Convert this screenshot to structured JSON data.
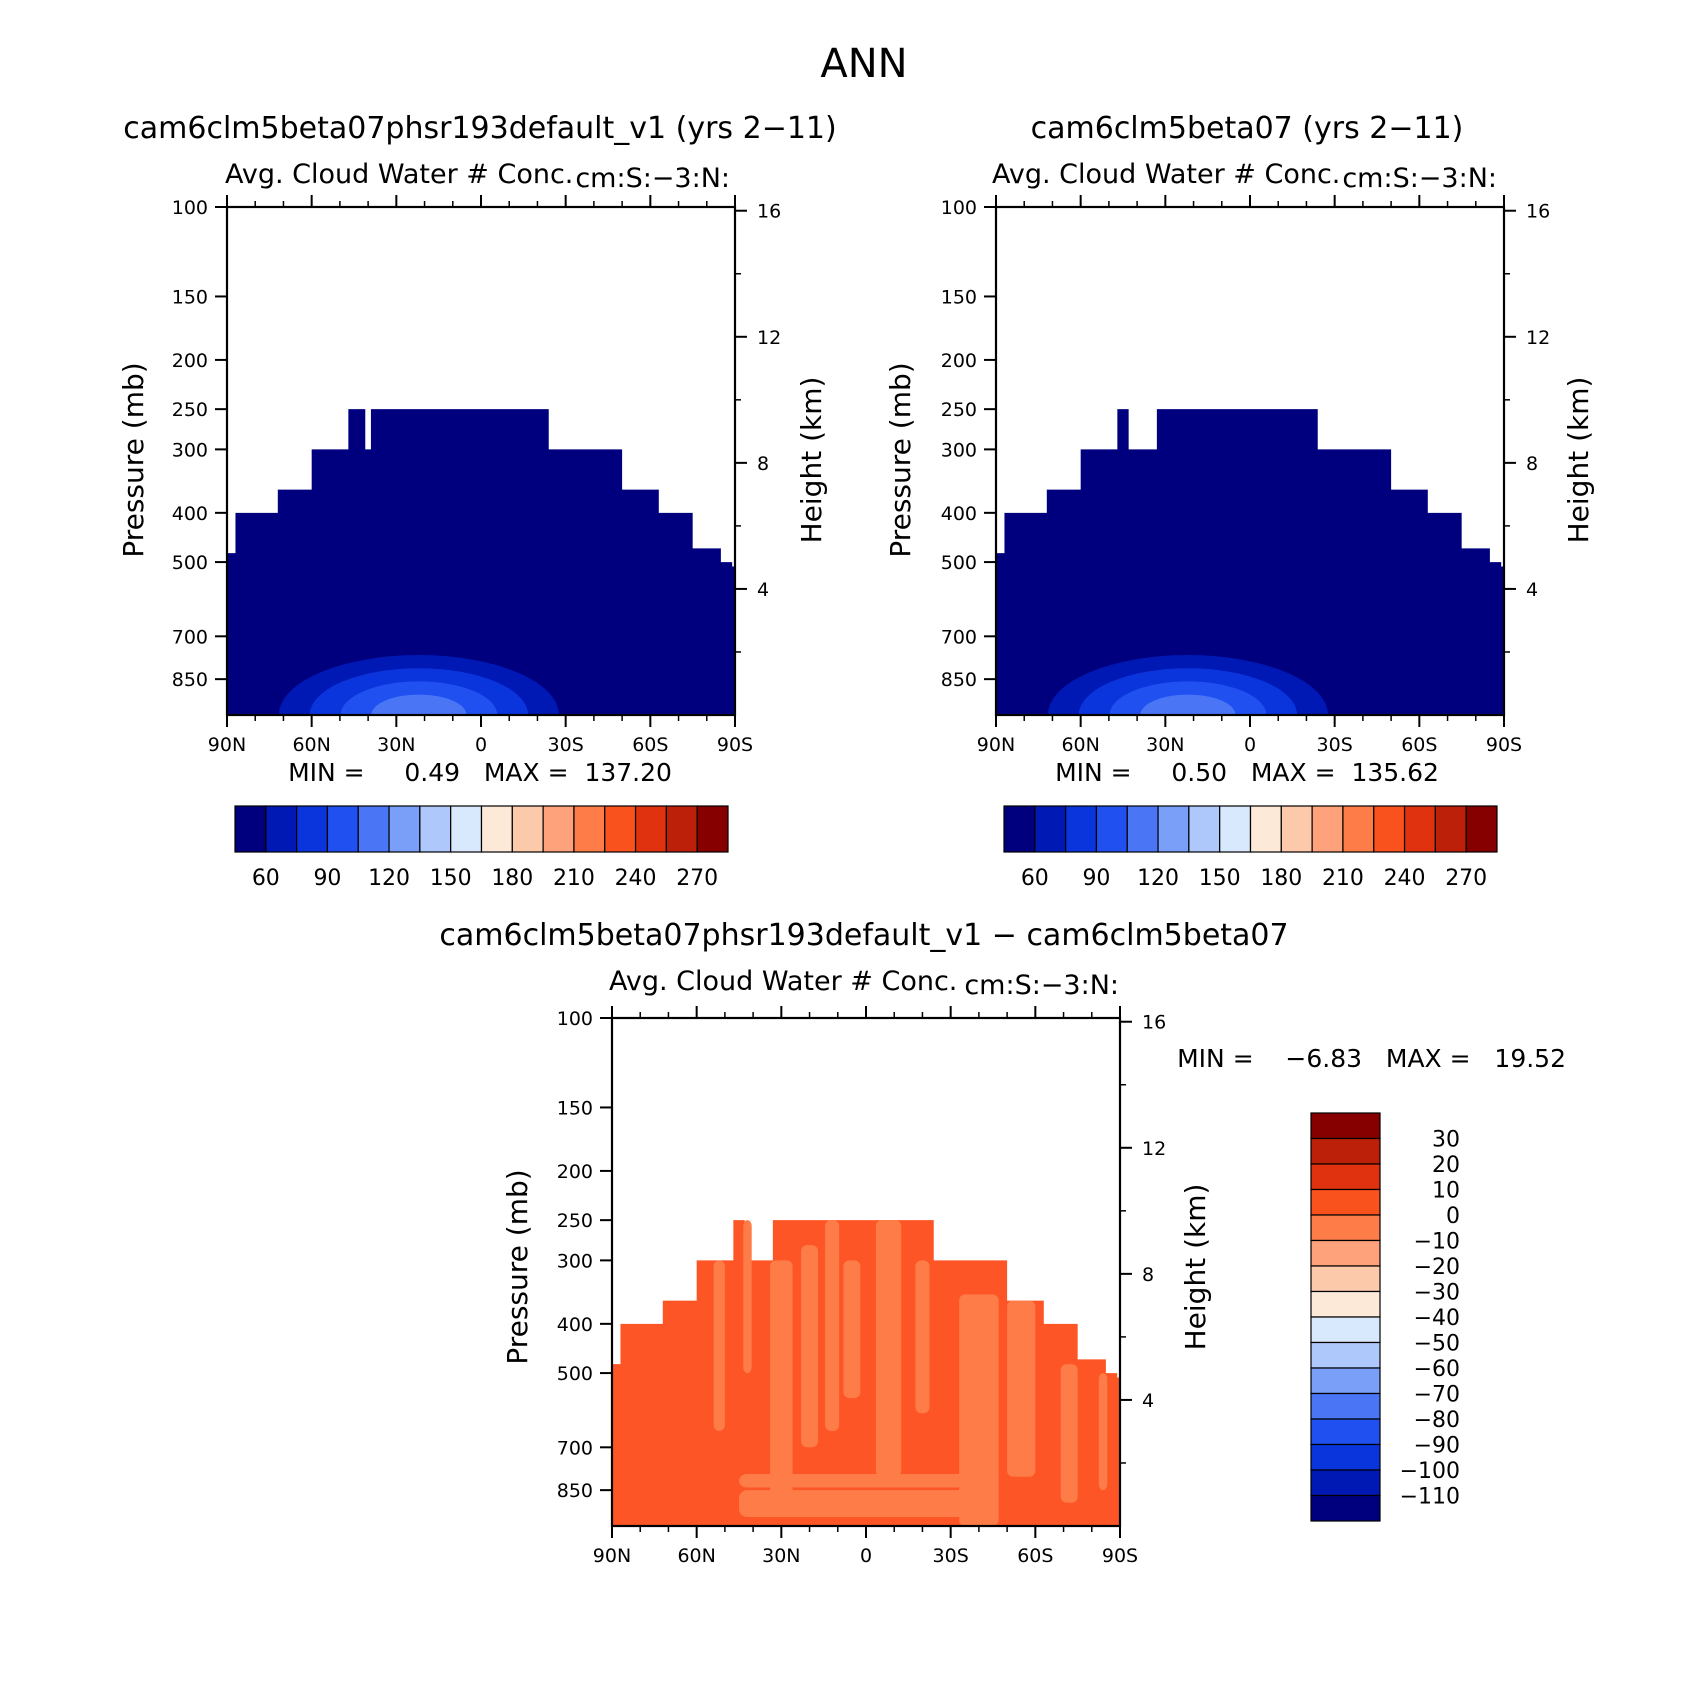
{
  "page": {
    "title": "ANN"
  },
  "panels": [
    {
      "title": "cam6clm5beta07phsr193default_v1 (yrs 2−11)",
      "subtitle": "Avg. Cloud Water # Conc.",
      "units": "cm:S:−3:N:",
      "ylabel": "Pressure (mb)",
      "ylabel2": "Height (km)",
      "stats": "MIN =     0.49   MAX =  137.20",
      "mode": "abs",
      "fill": "#00007f",
      "dip": [
        39,
        41
      ]
    },
    {
      "title": "cam6clm5beta07 (yrs 2−11)",
      "subtitle": "Avg. Cloud Water # Conc.",
      "units": "cm:S:−3:N:",
      "ylabel": "Pressure (mb)",
      "ylabel2": "Height (km)",
      "stats": "MIN =     0.50   MAX =  135.62",
      "mode": "abs",
      "fill": "#00007f",
      "dip": [
        33,
        43
      ]
    },
    {
      "title": "cam6clm5beta07phsr193default_v1 − cam6clm5beta07",
      "subtitle": "Avg. Cloud Water # Conc.",
      "units": "cm:S:−3:N:",
      "ylabel": "Pressure (mb)",
      "ylabel2": "Height (km)",
      "stats": "MIN =    −6.83   MAX =   19.52",
      "mode": "diff",
      "fill": "#fd5526",
      "dip": [
        33,
        43
      ]
    }
  ],
  "colorbars": {
    "abs": {
      "labels": [
        "60",
        "90",
        "120",
        "150",
        "180",
        "210",
        "240",
        "270"
      ],
      "colors": [
        "#00007f",
        "#0018b4",
        "#0a35dc",
        "#2050f0",
        "#4a76f5",
        "#7a9ff8",
        "#aec8fb",
        "#d8e9fd",
        "#fde9d8",
        "#fdc9ab",
        "#fda27a",
        "#fd7c47",
        "#f9521d",
        "#e0320f",
        "#bd2008",
        "#860000"
      ]
    },
    "diff": {
      "labels": [
        "30",
        "20",
        "10",
        "0",
        "−10",
        "−20",
        "−30",
        "−40",
        "−50",
        "−60",
        "−70",
        "−80",
        "−90",
        "−100",
        "−110"
      ],
      "colors": [
        "#860000",
        "#bd2008",
        "#e0320f",
        "#f9521d",
        "#fd7c47",
        "#fda27a",
        "#fdc9ab",
        "#fde9d8",
        "#d8e9fd",
        "#aec8fb",
        "#7a9ff8",
        "#4a76f5",
        "#2050f0",
        "#0a35dc",
        "#0018b4",
        "#00007f"
      ]
    }
  },
  "chart_data": {
    "type": "heatmap",
    "x_ticks": [
      "90N",
      "60N",
      "30N",
      "0",
      "30S",
      "60S",
      "90S"
    ],
    "x_range": [
      90,
      -90
    ],
    "y_ticks": [
      100,
      150,
      200,
      250,
      300,
      400,
      500,
      700,
      850
    ],
    "y_range": [
      100,
      1000
    ],
    "y_scale": "log",
    "y2_ticks": [
      16,
      12,
      8,
      4
    ],
    "data_top_pressure_by_lat": {
      "lat": [
        90,
        87,
        72,
        60,
        47,
        37,
        34,
        26,
        17,
        0,
        -24,
        -50,
        -63,
        -75,
        -85,
        -89
      ],
      "top_pressure": [
        480,
        400,
        360,
        300,
        250,
        250,
        250,
        250,
        250,
        250,
        300,
        360,
        400,
        470,
        500,
        510
      ]
    },
    "diff_positive_band": "0 to 10",
    "diff_patch_band": "−10 to 0"
  }
}
